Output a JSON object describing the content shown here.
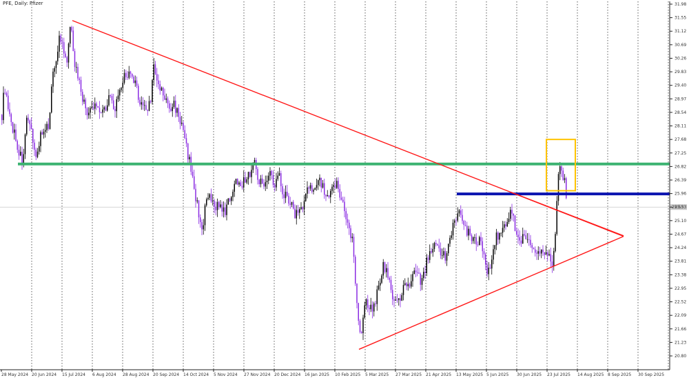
{
  "title": "PFE, Daily:  Pfizer",
  "current_price": "25.53",
  "chart_data": {
    "type": "candlestick",
    "title": "PFE, Daily:  Pfizer",
    "symbol": "PFE",
    "timeframe": "Daily",
    "instrument": "Pfizer",
    "ylim": [
      20.4,
      31.98
    ],
    "y_ticks": [
      "31.98",
      "31.55",
      "31.12",
      "30.69",
      "30.26",
      "29.83",
      "29.40",
      "28.97",
      "28.54",
      "28.11",
      "27.68",
      "27.25",
      "26.82",
      "26.39",
      "25.96",
      "25.53",
      "25.10",
      "24.67",
      "24.24",
      "23.81",
      "23.38",
      "22.95",
      "22.52",
      "22.09",
      "21.66",
      "21.23",
      "20.80"
    ],
    "x_ticks": [
      "28 May 2024",
      "20 Jun 2024",
      "15 Jul 2024",
      "6 Aug 2024",
      "28 Aug 2024",
      "20 Sep 2024",
      "14 Oct 2024",
      "5 Nov 2024",
      "27 Nov 2024",
      "20 Dec 2024",
      "16 Jan 2025",
      "10 Feb 2025",
      "5 Mar 2025",
      "27 Mar 2025",
      "21 Apr 2025",
      "13 May 2025",
      "5 Jun 2025",
      "30 Jun 2025",
      "23 Jul 2025",
      "14 Aug 2025",
      "8 Sep 2025",
      "30 Sep 2025"
    ],
    "close_path": [
      [
        0,
        28.0
      ],
      [
        6,
        29.4
      ],
      [
        12,
        28.4
      ],
      [
        20,
        27.9
      ],
      [
        26,
        27.3
      ],
      [
        32,
        27.0
      ],
      [
        38,
        28.2
      ],
      [
        46,
        27.9
      ],
      [
        52,
        27.0
      ],
      [
        58,
        27.9
      ],
      [
        64,
        27.8
      ],
      [
        70,
        28.2
      ],
      [
        76,
        29.8
      ],
      [
        82,
        30.4
      ],
      [
        86,
        31.0
      ],
      [
        90,
        30.6
      ],
      [
        96,
        30.0
      ],
      [
        100,
        31.0
      ],
      [
        103,
        31.3
      ],
      [
        108,
        30.0
      ],
      [
        114,
        29.6
      ],
      [
        120,
        28.9
      ],
      [
        126,
        28.5
      ],
      [
        132,
        28.6
      ],
      [
        138,
        28.8
      ],
      [
        146,
        28.6
      ],
      [
        152,
        28.7
      ],
      [
        158,
        29.1
      ],
      [
        164,
        28.6
      ],
      [
        172,
        29.0
      ],
      [
        178,
        29.6
      ],
      [
        184,
        29.8
      ],
      [
        190,
        29.6
      ],
      [
        196,
        29.4
      ],
      [
        202,
        28.9
      ],
      [
        206,
        28.8
      ],
      [
        212,
        28.6
      ],
      [
        218,
        29.0
      ],
      [
        222,
        30.0
      ],
      [
        228,
        29.4
      ],
      [
        234,
        29.2
      ],
      [
        240,
        28.9
      ],
      [
        246,
        28.6
      ],
      [
        252,
        28.8
      ],
      [
        258,
        28.5
      ],
      [
        264,
        28.0
      ],
      [
        270,
        27.4
      ],
      [
        276,
        26.8
      ],
      [
        282,
        26.0
      ],
      [
        288,
        25.3
      ],
      [
        294,
        24.8
      ],
      [
        298,
        25.7
      ],
      [
        304,
        25.8
      ],
      [
        310,
        25.5
      ],
      [
        316,
        25.7
      ],
      [
        322,
        25.3
      ],
      [
        328,
        25.5
      ],
      [
        334,
        25.9
      ],
      [
        340,
        26.3
      ],
      [
        346,
        26.4
      ],
      [
        352,
        26.3
      ],
      [
        358,
        26.5
      ],
      [
        364,
        26.7
      ],
      [
        368,
        27.0
      ],
      [
        374,
        26.5
      ],
      [
        380,
        26.2
      ],
      [
        386,
        26.5
      ],
      [
        392,
        26.6
      ],
      [
        398,
        26.1
      ],
      [
        404,
        26.7
      ],
      [
        410,
        26.0
      ],
      [
        416,
        25.9
      ],
      [
        422,
        25.6
      ],
      [
        428,
        25.3
      ],
      [
        434,
        25.5
      ],
      [
        440,
        25.6
      ],
      [
        446,
        26.2
      ],
      [
        452,
        26.0
      ],
      [
        458,
        26.4
      ],
      [
        464,
        26.4
      ],
      [
        470,
        26.0
      ],
      [
        476,
        25.7
      ],
      [
        482,
        26.1
      ],
      [
        488,
        26.3
      ],
      [
        494,
        25.9
      ],
      [
        500,
        25.3
      ],
      [
        506,
        24.9
      ],
      [
        512,
        24.4
      ],
      [
        516,
        22.8
      ],
      [
        520,
        21.8
      ],
      [
        524,
        21.6
      ],
      [
        528,
        22.4
      ],
      [
        532,
        22.5
      ],
      [
        538,
        22.3
      ],
      [
        544,
        22.6
      ],
      [
        550,
        23.1
      ],
      [
        556,
        23.7
      ],
      [
        562,
        23.4
      ],
      [
        568,
        22.7
      ],
      [
        574,
        22.6
      ],
      [
        580,
        22.5
      ],
      [
        586,
        23.1
      ],
      [
        592,
        22.9
      ],
      [
        598,
        23.4
      ],
      [
        604,
        23.4
      ],
      [
        610,
        23.2
      ],
      [
        616,
        23.5
      ],
      [
        622,
        24.1
      ],
      [
        628,
        24.3
      ],
      [
        634,
        24.2
      ],
      [
        640,
        24.0
      ],
      [
        646,
        24.0
      ],
      [
        652,
        24.4
      ],
      [
        658,
        25.0
      ],
      [
        664,
        25.5
      ],
      [
        670,
        25.2
      ],
      [
        676,
        24.8
      ],
      [
        682,
        24.6
      ],
      [
        688,
        24.4
      ],
      [
        694,
        24.5
      ],
      [
        700,
        24.2
      ],
      [
        706,
        23.3
      ],
      [
        712,
        23.8
      ],
      [
        718,
        24.5
      ],
      [
        724,
        24.7
      ],
      [
        730,
        24.9
      ],
      [
        736,
        25.1
      ],
      [
        742,
        25.4
      ],
      [
        746,
        25.0
      ],
      [
        750,
        24.6
      ],
      [
        756,
        24.5
      ],
      [
        762,
        24.6
      ],
      [
        768,
        24.4
      ],
      [
        774,
        24.3
      ],
      [
        780,
        24.1
      ],
      [
        786,
        24.1
      ],
      [
        792,
        24.1
      ],
      [
        798,
        23.9
      ],
      [
        802,
        23.7
      ],
      [
        806,
        25.0
      ],
      [
        810,
        26.6
      ],
      [
        814,
        26.8
      ],
      [
        818,
        26.4
      ],
      [
        822,
        25.8
      ]
    ],
    "support_line_green": 26.9,
    "resistance_line_blue": 25.95,
    "triangle_upper": {
      "from": [
        105,
        31.46
      ],
      "to": [
        905,
        24.6
      ]
    },
    "triangle_lower": {
      "from": [
        521,
        21.01
      ],
      "to": [
        905,
        24.6
      ]
    },
    "triangle_midline": {
      "from": [
        742,
        26.0
      ],
      "to": [
        905,
        24.62
      ]
    },
    "highlight_box": {
      "x": [
        793,
        835
      ],
      "y": [
        26.05,
        27.68
      ]
    },
    "price_line": 25.53,
    "colors": {
      "bull": "#000000",
      "bear": "#8a2be2",
      "wick": "#555555",
      "triangle": "#ff1a1a",
      "support": "#3cb371",
      "resistance": "#0b14b0",
      "highlight": "#ffc300",
      "grid": "#333333"
    }
  }
}
